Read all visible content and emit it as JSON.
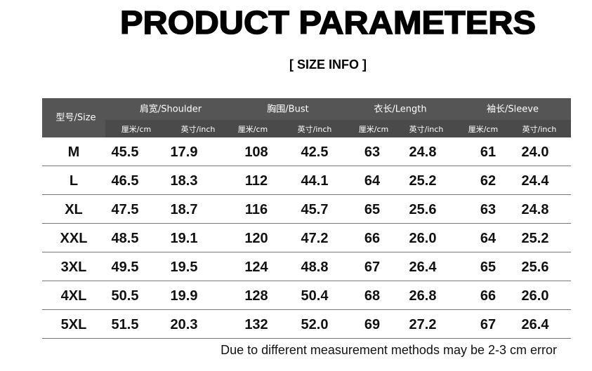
{
  "header": {
    "title": "PRODUCT PARAMETERS",
    "subtitle": "[ SIZE INFO ]"
  },
  "table": {
    "size_header": "型号/Size",
    "groups": [
      {
        "name": "肩宽/Shoulder",
        "units": [
          "厘米/cm",
          "英寸/inch"
        ]
      },
      {
        "name": "胸围/Bust",
        "units": [
          "厘米/cm",
          "英寸/inch"
        ]
      },
      {
        "name": "衣长/Length",
        "units": [
          "厘米/cm",
          "英寸/inch"
        ]
      },
      {
        "name": "袖长/Sleeve",
        "units": [
          "厘米/cm",
          "英寸/inch"
        ]
      }
    ],
    "rows": [
      [
        "M",
        "45.5",
        "17.9",
        "108",
        "42.5",
        "63",
        "24.8",
        "61",
        "24.0"
      ],
      [
        "L",
        "46.5",
        "18.3",
        "112",
        "44.1",
        "64",
        "25.2",
        "62",
        "24.4"
      ],
      [
        "XL",
        "47.5",
        "18.7",
        "116",
        "45.7",
        "65",
        "25.6",
        "63",
        "24.8"
      ],
      [
        "XXL",
        "48.5",
        "19.1",
        "120",
        "47.2",
        "66",
        "26.0",
        "64",
        "25.2"
      ],
      [
        "3XL",
        "49.5",
        "19.5",
        "124",
        "48.8",
        "67",
        "26.4",
        "65",
        "25.6"
      ],
      [
        "4XL",
        "50.5",
        "19.9",
        "128",
        "50.4",
        "68",
        "26.8",
        "66",
        "26.0"
      ],
      [
        "5XL",
        "51.5",
        "20.3",
        "132",
        "52.0",
        "69",
        "27.2",
        "67",
        "26.4"
      ]
    ]
  },
  "footer": {
    "note": "Due to different measurement methods may be 2-3 cm error"
  }
}
